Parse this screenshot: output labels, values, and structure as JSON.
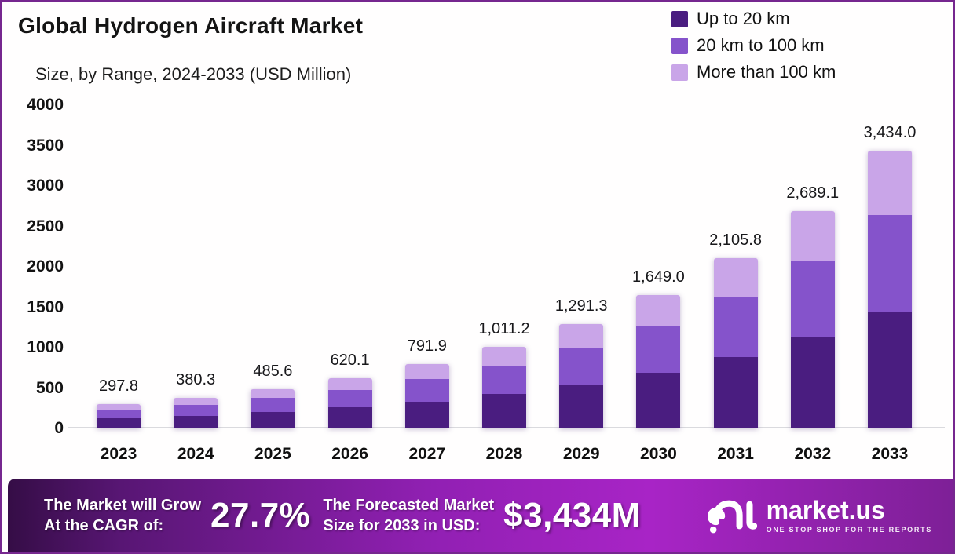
{
  "header": {
    "title": "Global Hydrogen Aircraft Market",
    "subtitle": "Size, by Range, 2024-2033 (USD Million)"
  },
  "legend": [
    {
      "label": "Up to 20 km",
      "color": "#4A1D80"
    },
    {
      "label": "20 km to 100 km",
      "color": "#8553CB"
    },
    {
      "label": "More than 100 km",
      "color": "#C9A5E8"
    }
  ],
  "chart_data": {
    "type": "bar",
    "stacked": true,
    "title": "Global Hydrogen Aircraft Market Size, by Range, 2024-2033 (USD Million)",
    "categories": [
      "2023",
      "2024",
      "2025",
      "2026",
      "2027",
      "2028",
      "2029",
      "2030",
      "2031",
      "2032",
      "2033"
    ],
    "totals": [
      297.8,
      380.3,
      485.6,
      620.1,
      791.9,
      1011.2,
      1291.3,
      1649.0,
      2105.8,
      2689.1,
      3434.0
    ],
    "total_labels": [
      "297.8",
      "380.3",
      "485.6",
      "620.1",
      "791.9",
      "1,011.2",
      "1,291.3",
      "1,649.0",
      "2,105.8",
      "2,689.1",
      "3,434.0"
    ],
    "series": [
      {
        "name": "Up to 20 km",
        "color": "#4A1D80",
        "values": [
          125.1,
          159.7,
          204.0,
          260.4,
          332.6,
          424.7,
          542.3,
          692.6,
          884.4,
          1129.4,
          1442.3
        ]
      },
      {
        "name": "20 km to 100 km",
        "color": "#8553CB",
        "values": [
          104.2,
          133.1,
          170.0,
          217.0,
          277.2,
          353.9,
          451.9,
          577.1,
          737.0,
          941.2,
          1201.9
        ]
      },
      {
        "name": "More than 100 km",
        "color": "#C9A5E8",
        "values": [
          68.5,
          87.5,
          111.6,
          142.7,
          182.1,
          232.6,
          297.1,
          379.3,
          484.4,
          618.5,
          789.8
        ]
      }
    ],
    "segments_estimated": true,
    "ylim": [
      0,
      4000
    ],
    "yticks": [
      0,
      500,
      1000,
      1500,
      2000,
      2500,
      3000,
      3500,
      4000
    ],
    "grid": false,
    "legend_position": "top-right"
  },
  "footer": {
    "cagr_label_line1": "The Market will Grow",
    "cagr_label_line2": "At the CAGR of:",
    "cagr_value": "27.7%",
    "forecast_label_line1": "The Forecasted Market",
    "forecast_label_line2": "Size for 2033 in USD:",
    "forecast_value": "$3,434M",
    "brand": {
      "name": "market.us",
      "tagline": "ONE STOP SHOP FOR THE REPORTS"
    }
  }
}
